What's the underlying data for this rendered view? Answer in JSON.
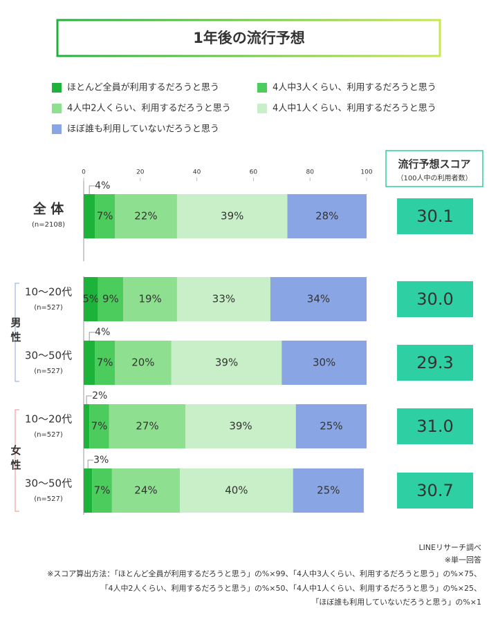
{
  "chart_data": {
    "type": "stacked-bar",
    "title": "1年後の流行予想",
    "categories": [
      "全 体",
      "10～20代",
      "30～50代",
      "10～20代",
      "30～50代"
    ],
    "n_labels": [
      "(n=2108)",
      "(n=527)",
      "(n=527)",
      "(n=527)",
      "(n=527)"
    ],
    "groups": [
      "男性",
      "女性"
    ],
    "xlim": [
      0,
      100
    ],
    "xticks": [
      0,
      20,
      40,
      60,
      80,
      100
    ],
    "series": [
      {
        "name": "ほとんど全員が利用するだろうと思う",
        "color": "#1db33a",
        "values": [
          4,
          5,
          4,
          2,
          3
        ],
        "value_labels": [
          "4%",
          "5%",
          "4%",
          "2%",
          "3%"
        ]
      },
      {
        "name": "4人中3人くらい、利用するだろうと思う",
        "color": "#4ccc5c",
        "values": [
          7,
          9,
          7,
          7,
          7
        ],
        "value_labels": [
          "7%",
          "9%",
          "7%",
          "7%",
          "7%"
        ]
      },
      {
        "name": "4人中2人くらい、利用するだろうと思う",
        "color": "#8fdf90",
        "values": [
          22,
          19,
          20,
          27,
          24
        ],
        "value_labels": [
          "22%",
          "19%",
          "20%",
          "27%",
          "24%"
        ]
      },
      {
        "name": "4人中1人くらい、利用するだろうと思う",
        "color": "#c8efc8",
        "values": [
          39,
          33,
          39,
          39,
          40
        ],
        "value_labels": [
          "39%",
          "33%",
          "39%",
          "39%",
          "40%"
        ]
      },
      {
        "name": "ほぼ誰も利用していないだろうと思う",
        "color": "#8aa5e3",
        "values": [
          28,
          34,
          30,
          25,
          25
        ],
        "value_labels": [
          "28%",
          "34%",
          "30%",
          "25%",
          "25%"
        ]
      }
    ],
    "score_title": "流行予想スコア",
    "score_subtitle": "（100人中の利用者数）",
    "scores": {
      "color": "#2ecfa2",
      "values": [
        30.1,
        30.0,
        29.3,
        31.0,
        30.7
      ],
      "value_labels": [
        "30.1",
        "30.0",
        "29.3",
        "31.0",
        "30.7"
      ]
    },
    "notes": [
      "LINEリサーチ調べ",
      "※単一回答",
      "※スコア算出方法：「ほとんど全員が利用するだろうと思う」の%×99、「4人中3人くらい、利用するだろうと思う」の%×75、",
      "「4人中2人くらい、利用するだろうと思う」の%×50、「4人中1人くらい、利用するだろうと思う」の%×25、",
      "「ほぼ誰も利用していないだろうと思う」の%×1"
    ]
  }
}
